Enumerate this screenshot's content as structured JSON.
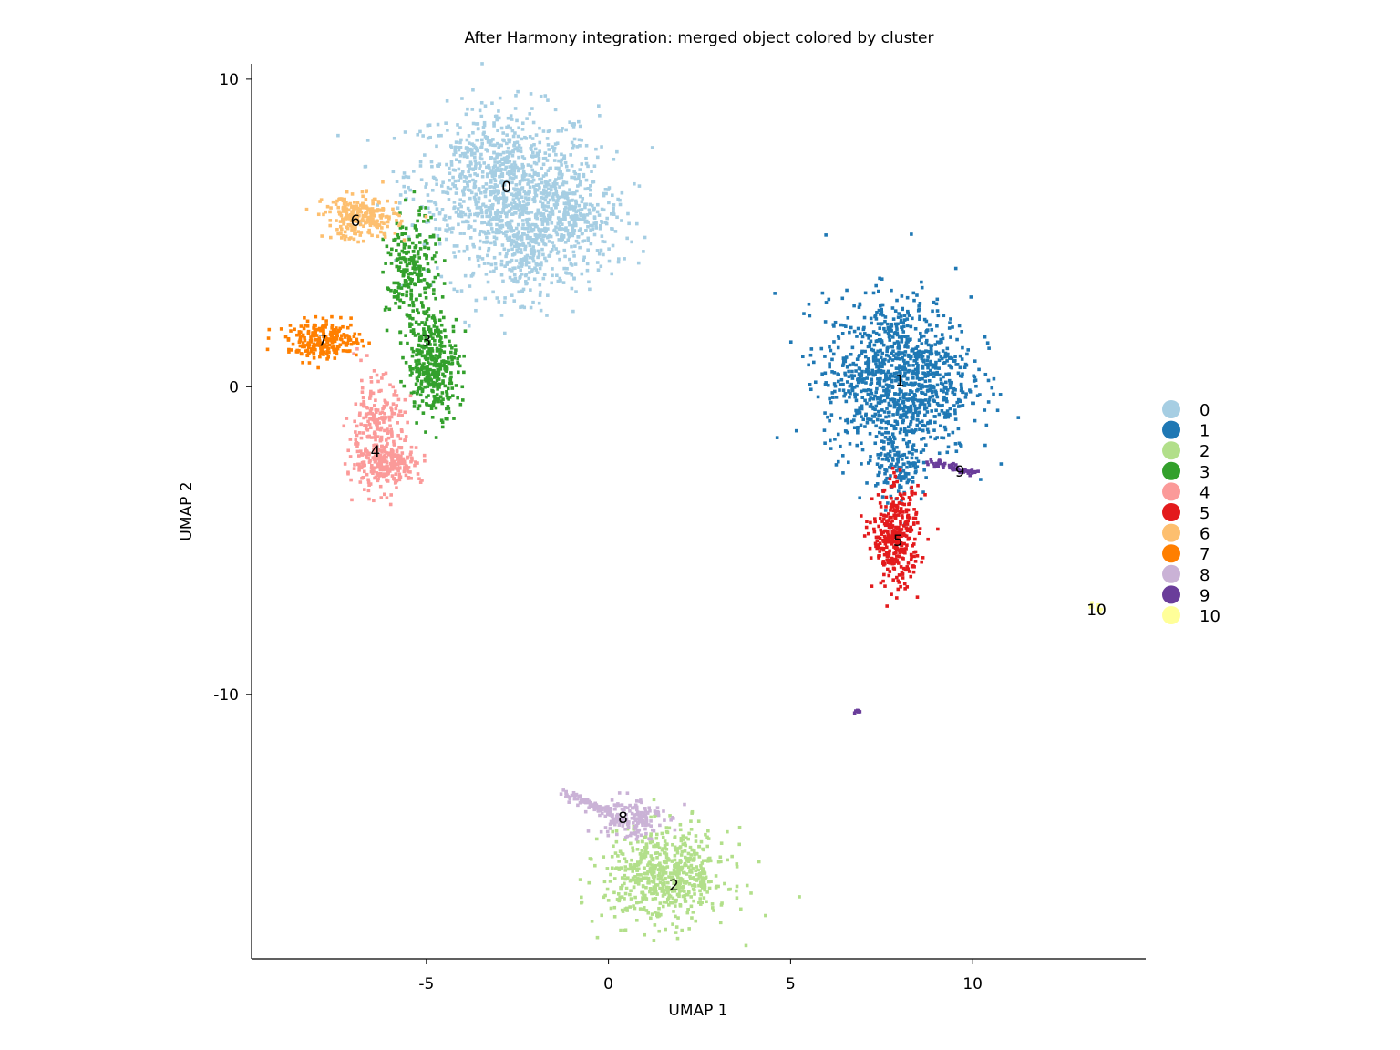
{
  "chart_data": {
    "type": "scatter",
    "title": "After Harmony integration: merged object colored by cluster",
    "xlabel": "UMAP 1",
    "ylabel": "UMAP 2",
    "xlim": [
      -9.8,
      14.75
    ],
    "ylim": [
      -18.6,
      10.5
    ],
    "xticks": [
      -5,
      0,
      5,
      10
    ],
    "xtick_labels": [
      "-5",
      "0",
      "5",
      "10"
    ],
    "yticks": [
      10,
      0,
      -10
    ],
    "ytick_labels": [
      "10",
      "0",
      "-10"
    ],
    "grid": false,
    "legend_position": "right",
    "clusters": [
      {
        "name": "0",
        "color": "#A6CEE3",
        "label_pos": [
          -2.8,
          6.5
        ],
        "blobs": [
          {
            "kind": "gauss",
            "c": [
              -2.9,
              6.9
            ],
            "s": [
              1.3,
              1.1
            ],
            "n": 700
          },
          {
            "kind": "gauss",
            "c": [
              -2.3,
              5.2
            ],
            "s": [
              1.2,
              1.1
            ],
            "n": 600
          },
          {
            "kind": "gauss",
            "c": [
              -1.0,
              5.5
            ],
            "s": [
              0.6,
              0.5
            ],
            "n": 150
          },
          {
            "kind": "gauss",
            "c": [
              -2.4,
              4.0
            ],
            "s": [
              0.3,
              0.6
            ],
            "n": 80
          }
        ]
      },
      {
        "name": "1",
        "color": "#1F78B4",
        "label_pos": [
          8.0,
          0.2
        ],
        "blobs": [
          {
            "kind": "gauss",
            "c": [
              7.95,
              0.3
            ],
            "s": [
              1.0,
              1.3
            ],
            "n": 1100
          },
          {
            "kind": "gauss",
            "c": [
              7.95,
              -2.6
            ],
            "s": [
              0.3,
              0.6
            ],
            "n": 120
          }
        ]
      },
      {
        "name": "2",
        "color": "#B2DF8A",
        "label_pos": [
          1.8,
          -16.2
        ],
        "blobs": [
          {
            "kind": "gauss",
            "c": [
              1.6,
              -15.9
            ],
            "s": [
              0.85,
              0.75
            ],
            "n": 650
          }
        ]
      },
      {
        "name": "3",
        "color": "#33A02C",
        "label_pos": [
          -5.0,
          1.5
        ],
        "blobs": [
          {
            "kind": "gauss",
            "c": [
              -5.4,
              3.6
            ],
            "s": [
              0.35,
              1.0
            ],
            "n": 250
          },
          {
            "kind": "gauss",
            "c": [
              -4.8,
              0.7
            ],
            "s": [
              0.35,
              0.8
            ],
            "n": 350
          }
        ]
      },
      {
        "name": "4",
        "color": "#FB9A99",
        "label_pos": [
          -6.4,
          -2.1
        ],
        "blobs": [
          {
            "kind": "gauss",
            "c": [
              -6.4,
              -1.5
            ],
            "s": [
              0.4,
              0.9
            ],
            "n": 250
          },
          {
            "kind": "gauss",
            "c": [
              -6.0,
              -2.5
            ],
            "s": [
              0.45,
              0.3
            ],
            "n": 200
          }
        ]
      },
      {
        "name": "5",
        "color": "#E31A1C",
        "label_pos": [
          7.95,
          -5.0
        ],
        "blobs": [
          {
            "kind": "gauss",
            "c": [
              7.9,
              -4.9
            ],
            "s": [
              0.32,
              0.8
            ],
            "n": 350
          }
        ]
      },
      {
        "name": "6",
        "color": "#FDBF6F",
        "label_pos": [
          -6.95,
          5.4
        ],
        "blobs": [
          {
            "kind": "gauss",
            "c": [
              -6.8,
              5.5
            ],
            "s": [
              0.5,
              0.35
            ],
            "n": 250
          }
        ]
      },
      {
        "name": "7",
        "color": "#FF7F00",
        "label_pos": [
          -7.85,
          1.5
        ],
        "blobs": [
          {
            "kind": "gauss",
            "c": [
              -7.8,
              1.5
            ],
            "s": [
              0.5,
              0.3
            ],
            "n": 250
          }
        ]
      },
      {
        "name": "8",
        "color": "#CAB2D6",
        "label_pos": [
          0.4,
          -14.0
        ],
        "blobs": [
          {
            "kind": "line",
            "c": [
              -1.2,
              -13.2
            ],
            "e": [
              0.3,
              -14.0
            ],
            "s": [
              0.08,
              0.08
            ],
            "n": 80
          },
          {
            "kind": "gauss",
            "c": [
              0.6,
              -14.0
            ],
            "s": [
              0.45,
              0.35
            ],
            "n": 150
          }
        ]
      },
      {
        "name": "9",
        "color": "#6A3D9A",
        "label_pos": [
          9.65,
          -2.75
        ],
        "blobs": [
          {
            "kind": "line",
            "c": [
              8.6,
              -2.4
            ],
            "e": [
              10.15,
              -2.8
            ],
            "s": [
              0.05,
              0.05
            ],
            "n": 60
          },
          {
            "kind": "gauss",
            "c": [
              6.85,
              -10.55
            ],
            "s": [
              0.04,
              0.04
            ],
            "n": 8
          }
        ]
      },
      {
        "name": "10",
        "color": "#FFFF99",
        "label_pos": [
          13.4,
          -7.25
        ],
        "blobs": [
          {
            "kind": "gauss",
            "c": [
              13.4,
              -7.2
            ],
            "s": [
              0.08,
              0.06
            ],
            "n": 10
          }
        ]
      }
    ]
  }
}
